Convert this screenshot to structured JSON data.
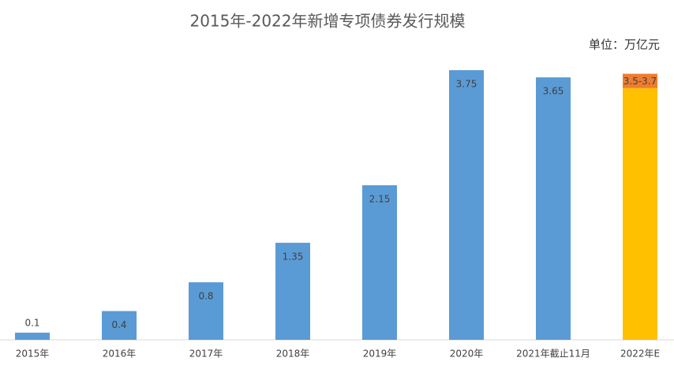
{
  "chart_data": {
    "type": "bar",
    "title": "2015年-2022年新增专项债券发行规模",
    "unit_label": "单位：万亿元",
    "categories": [
      "2015年",
      "2016年",
      "2017年",
      "2018年",
      "2019年",
      "2020年",
      "2021年截止11月"
    ],
    "values": [
      0.1,
      0.4,
      0.8,
      1.35,
      2.15,
      3.75,
      3.65
    ],
    "color": "#5b9bd5",
    "estimate": {
      "category": "2022年E",
      "low": 3.5,
      "high": 3.7,
      "label": "3.5-3.7",
      "low_color": "#ffc000",
      "range_color": "#ed7d31"
    }
  }
}
